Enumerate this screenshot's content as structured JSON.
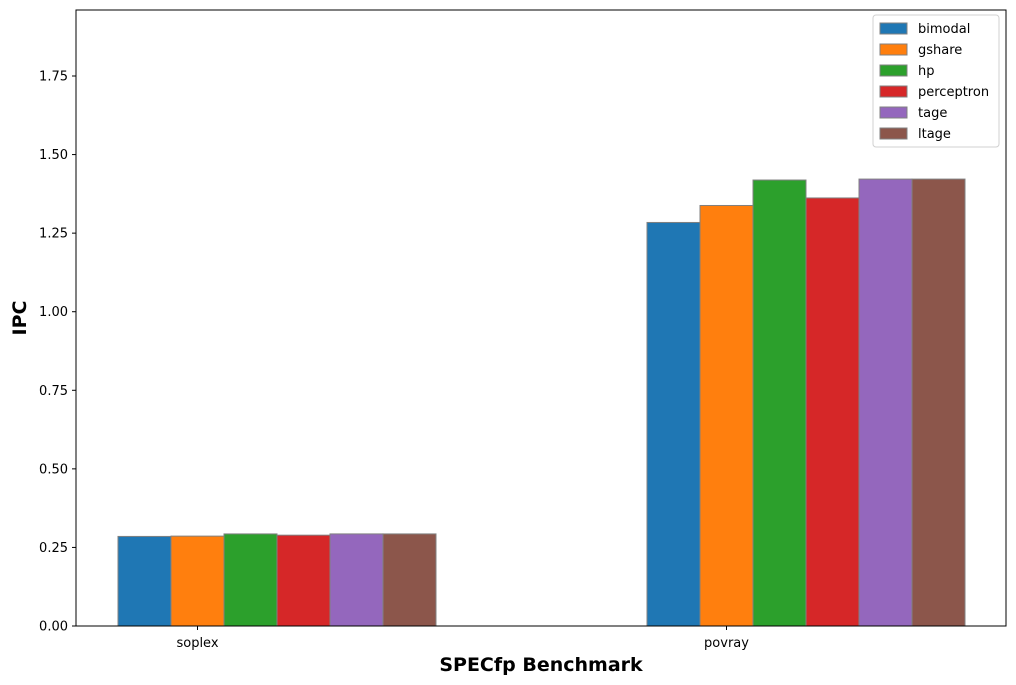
{
  "chart_data": {
    "type": "bar",
    "categories": [
      "soplex",
      "povray"
    ],
    "series": [
      {
        "name": "bimodal",
        "color": "#1f77b4",
        "values": [
          0.285,
          1.284
        ]
      },
      {
        "name": "gshare",
        "color": "#ff7f0e",
        "values": [
          0.286,
          1.338
        ]
      },
      {
        "name": "hp",
        "color": "#2ca02c",
        "values": [
          0.293,
          1.419
        ]
      },
      {
        "name": "perceptron",
        "color": "#d62728",
        "values": [
          0.289,
          1.362
        ]
      },
      {
        "name": "tage",
        "color": "#9467bd",
        "values": [
          0.293,
          1.422
        ]
      },
      {
        "name": "ltage",
        "color": "#8c564b",
        "values": [
          0.293,
          1.422
        ]
      }
    ],
    "title": "",
    "xlabel": "SPECfp Benchmark",
    "ylabel": "IPC",
    "ylim": [
      0,
      1.96
    ],
    "yticks": [
      "0.00",
      "0.25",
      "0.50",
      "0.75",
      "1.00",
      "1.25",
      "1.50",
      "1.75"
    ],
    "grid": false,
    "legend_position": "top-right",
    "bar_edge_color": "#808080"
  }
}
